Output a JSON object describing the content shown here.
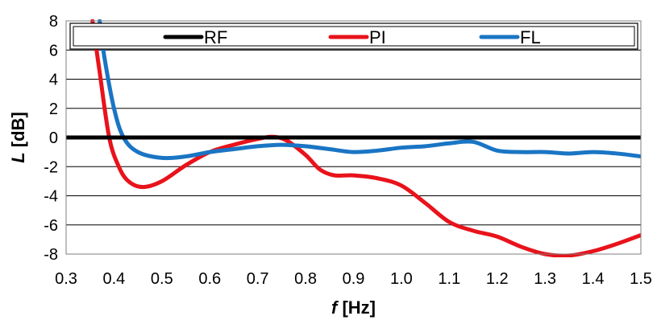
{
  "chart_data": {
    "type": "line",
    "xlabel_var": "f",
    "xlabel_unit": " [Hz]",
    "ylabel_var": "L",
    "ylabel_unit": " [dB]",
    "xlim": [
      0.3,
      1.5
    ],
    "ylim": [
      -8,
      8
    ],
    "xticks": [
      "0.3",
      "0.4",
      "0.5",
      "0.6",
      "0.7",
      "0.8",
      "0.9",
      "1.0",
      "1.1",
      "1.2",
      "1.3",
      "1.4",
      "1.5"
    ],
    "yticks": [
      "8",
      "6",
      "4",
      "2",
      "0",
      "-2",
      "-4",
      "-6",
      "-8"
    ],
    "grid": "horizontal",
    "legend_position": "top",
    "series": [
      {
        "name": "RF",
        "color": "#000000",
        "x": [
          0.3,
          1.5
        ],
        "y": [
          0,
          0
        ]
      },
      {
        "name": "PI",
        "color": "#e8131b",
        "x": [
          0.355,
          0.37,
          0.39,
          0.41,
          0.43,
          0.46,
          0.5,
          0.55,
          0.6,
          0.65,
          0.7,
          0.73,
          0.76,
          0.8,
          0.83,
          0.86,
          0.9,
          0.95,
          1.0,
          1.05,
          1.1,
          1.15,
          1.2,
          1.25,
          1.3,
          1.35,
          1.4,
          1.45,
          1.5
        ],
        "y": [
          8.0,
          4.5,
          0.0,
          -2.0,
          -3.0,
          -3.4,
          -3.0,
          -1.9,
          -1.0,
          -0.5,
          -0.1,
          0.05,
          -0.2,
          -1.2,
          -2.2,
          -2.6,
          -2.6,
          -2.8,
          -3.3,
          -4.5,
          -5.8,
          -6.4,
          -6.8,
          -7.5,
          -8.0,
          -8.1,
          -7.8,
          -7.3,
          -6.7
        ]
      },
      {
        "name": "FL",
        "color": "#1a75c4",
        "x": [
          0.37,
          0.38,
          0.4,
          0.42,
          0.45,
          0.5,
          0.55,
          0.6,
          0.65,
          0.7,
          0.75,
          0.8,
          0.85,
          0.9,
          0.95,
          1.0,
          1.05,
          1.1,
          1.15,
          1.2,
          1.25,
          1.3,
          1.35,
          1.4,
          1.45,
          1.5
        ],
        "y": [
          8.0,
          5.5,
          2.0,
          0.0,
          -1.0,
          -1.4,
          -1.3,
          -1.0,
          -0.8,
          -0.6,
          -0.5,
          -0.6,
          -0.8,
          -1.0,
          -0.9,
          -0.7,
          -0.6,
          -0.4,
          -0.3,
          -0.9,
          -1.0,
          -1.0,
          -1.1,
          -1.0,
          -1.1,
          -1.3
        ]
      }
    ]
  }
}
